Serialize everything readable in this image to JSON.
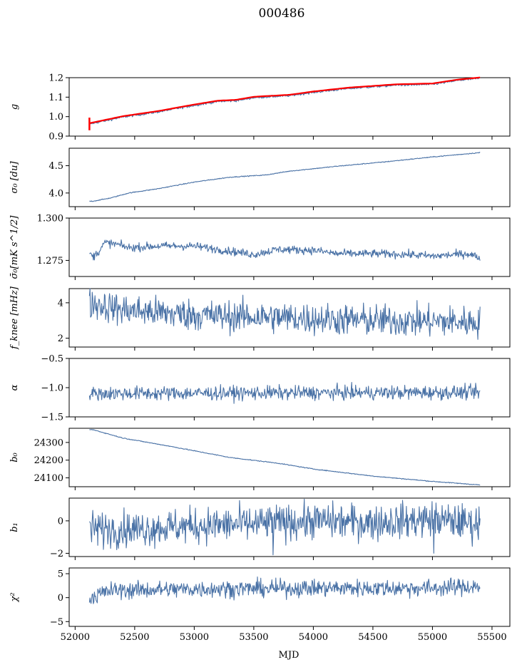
{
  "title": "000486",
  "xlabel": "MJD",
  "colors": {
    "series": "#4a72a6",
    "fit": "#ff0000"
  },
  "chart_data": {
    "type": "line",
    "shared_x": {
      "label": "MJD",
      "range": [
        51950,
        55650
      ],
      "ticks": [
        52000,
        52500,
        53000,
        53500,
        54000,
        54500,
        55000,
        55500
      ],
      "tick_labels": [
        "52000",
        "52500",
        "53000",
        "53500",
        "54000",
        "54500",
        "55000",
        "55500"
      ],
      "data_range": [
        52120,
        55400
      ]
    },
    "panels": [
      {
        "id": "g",
        "ylabel": "g",
        "ylim": [
          0.9,
          1.2
        ],
        "yticks": [
          0.9,
          1.0,
          1.1,
          1.2
        ],
        "ytick_labels": [
          "0.9",
          "1.0",
          "1.1",
          "1.2"
        ],
        "model": "trend",
        "knots": [
          [
            52120,
            0.962
          ],
          [
            52400,
            0.998
          ],
          [
            52700,
            1.025
          ],
          [
            53000,
            1.058
          ],
          [
            53200,
            1.078
          ],
          [
            53350,
            1.082
          ],
          [
            53500,
            1.098
          ],
          [
            53800,
            1.108
          ],
          [
            54000,
            1.125
          ],
          [
            54300,
            1.145
          ],
          [
            54700,
            1.162
          ],
          [
            55000,
            1.166
          ],
          [
            55200,
            1.185
          ],
          [
            55400,
            1.197
          ]
        ],
        "noise": 0.003,
        "fit_overlay": true,
        "fit_offset": 0.004,
        "spike": {
          "x": 52120,
          "y_range": [
            0.93,
            0.995
          ]
        }
      },
      {
        "id": "sigma0",
        "ylabel": "σ₀ [du]",
        "ylim": [
          3.75,
          4.82
        ],
        "yticks": [
          4.0,
          4.5
        ],
        "ytick_labels": [
          "4.0",
          "4.5"
        ],
        "model": "trend",
        "knots": [
          [
            52150,
            3.85
          ],
          [
            52300,
            3.91
          ],
          [
            52450,
            4.0
          ],
          [
            52700,
            4.08
          ],
          [
            53000,
            4.2
          ],
          [
            53300,
            4.29
          ],
          [
            53600,
            4.33
          ],
          [
            53800,
            4.4
          ],
          [
            54200,
            4.49
          ],
          [
            54600,
            4.57
          ],
          [
            55000,
            4.66
          ],
          [
            55400,
            4.74
          ]
        ],
        "noise": 0.004
      },
      {
        "id": "sigma_bar",
        "ylabel": "σ̄₀[mK s^1/2]",
        "ylim": [
          1.2655,
          1.3
        ],
        "yticks": [
          1.275,
          1.3
        ],
        "ytick_labels": [
          "1.275",
          "1.300"
        ],
        "model": "trend",
        "knots": [
          [
            52120,
            1.2795
          ],
          [
            52150,
            1.277
          ],
          [
            52200,
            1.2805
          ],
          [
            52250,
            1.2855
          ],
          [
            52350,
            1.2845
          ],
          [
            52450,
            1.2825
          ],
          [
            52700,
            1.2835
          ],
          [
            53000,
            1.2835
          ],
          [
            53300,
            1.2805
          ],
          [
            53500,
            1.2785
          ],
          [
            53700,
            1.2815
          ],
          [
            54000,
            1.281
          ],
          [
            54200,
            1.279
          ],
          [
            54500,
            1.279
          ],
          [
            54800,
            1.2785
          ],
          [
            55000,
            1.2775
          ],
          [
            55300,
            1.279
          ],
          [
            55400,
            1.2765
          ]
        ],
        "noise": 0.0012
      },
      {
        "id": "fknee",
        "ylabel": "f_knee [mHz]",
        "ylim": [
          1.5,
          4.8
        ],
        "yticks": [
          2,
          4
        ],
        "ytick_labels": [
          "2",
          "4"
        ],
        "model": "trend",
        "knots": [
          [
            52120,
            4.0
          ],
          [
            52400,
            3.6
          ],
          [
            52800,
            3.4
          ],
          [
            53200,
            3.25
          ],
          [
            53600,
            3.2
          ],
          [
            54000,
            3.1
          ],
          [
            54500,
            3.0
          ],
          [
            55000,
            2.95
          ],
          [
            55400,
            2.9
          ]
        ],
        "noise": 0.45
      },
      {
        "id": "alpha",
        "ylabel": "α",
        "ylim": [
          -1.5,
          -0.5
        ],
        "yticks": [
          -1.5,
          -1.0,
          -0.5
        ],
        "ytick_labels": [
          "−1.5",
          "−1.0",
          "−0.5"
        ],
        "model": "trend",
        "knots": [
          [
            52120,
            -1.1
          ],
          [
            55400,
            -1.08
          ]
        ],
        "noise": 0.06
      },
      {
        "id": "b0",
        "ylabel": "b₀",
        "ylim": [
          24050,
          24380
        ],
        "yticks": [
          24100,
          24200,
          24300
        ],
        "ytick_labels": [
          "24100",
          "24200",
          "24300"
        ],
        "model": "trend",
        "knots": [
          [
            52150,
            24372
          ],
          [
            52400,
            24325
          ],
          [
            52800,
            24278
          ],
          [
            53300,
            24215
          ],
          [
            53700,
            24183
          ],
          [
            54000,
            24150
          ],
          [
            54500,
            24110
          ],
          [
            55000,
            24080
          ],
          [
            55400,
            24060
          ]
        ],
        "noise": 1.2
      },
      {
        "id": "b1",
        "ylabel": "b₁",
        "ylim": [
          -2.2,
          1.4
        ],
        "yticks": [
          -2,
          0
        ],
        "ytick_labels": [
          "−2",
          "0"
        ],
        "model": "trend",
        "knots": [
          [
            52120,
            -0.5
          ],
          [
            52500,
            -0.5
          ],
          [
            53000,
            -0.3
          ],
          [
            53500,
            -0.2
          ],
          [
            54000,
            0.0
          ],
          [
            54500,
            -0.1
          ],
          [
            55000,
            0.1
          ],
          [
            55400,
            -0.2
          ]
        ],
        "noise": 0.55,
        "dips": [
          [
            53660,
            -2.1
          ],
          [
            55010,
            -2.0
          ]
        ]
      },
      {
        "id": "chi2",
        "ylabel": "χ²",
        "ylim": [
          -6,
          6.2
        ],
        "yticks": [
          -5,
          0,
          5
        ],
        "ytick_labels": [
          "−5",
          "0",
          "5"
        ],
        "model": "trend",
        "knots": [
          [
            52120,
            0.0
          ],
          [
            52300,
            1.5
          ],
          [
            53000,
            1.8
          ],
          [
            54000,
            2.0
          ],
          [
            55000,
            2.0
          ],
          [
            55400,
            2.4
          ]
        ],
        "noise": 0.9
      }
    ]
  }
}
